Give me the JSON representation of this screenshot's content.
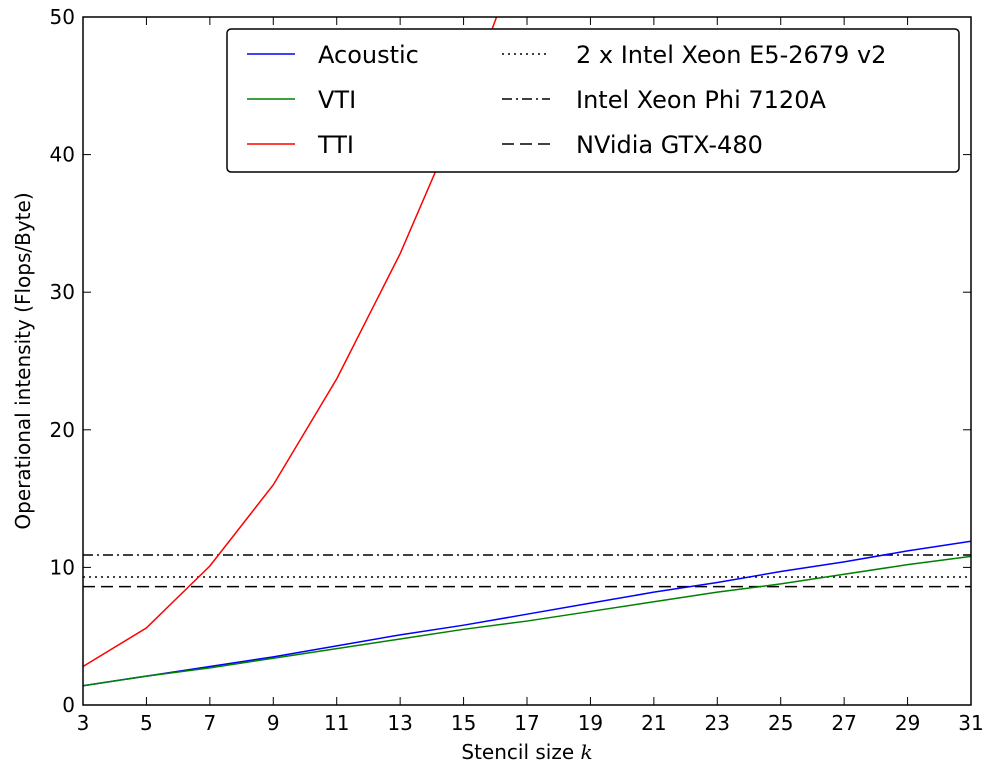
{
  "chart_data": {
    "type": "line",
    "xlabel": "Stencil size",
    "xlabel_var": "k",
    "ylabel": "Operational intensity (Flops/Byte)",
    "x": [
      3,
      5,
      7,
      9,
      11,
      13,
      15,
      17,
      19,
      21,
      23,
      25,
      27,
      29,
      31
    ],
    "series": [
      {
        "name": "Acoustic",
        "color": "#0000ff",
        "values": [
          1.4,
          2.1,
          2.8,
          3.5,
          4.3,
          5.1,
          5.8,
          6.6,
          7.4,
          8.2,
          8.9,
          9.7,
          10.4,
          11.2,
          11.9
        ]
      },
      {
        "name": "VTI",
        "color": "#008000",
        "values": [
          1.4,
          2.1,
          2.7,
          3.4,
          4.1,
          4.8,
          5.5,
          6.1,
          6.8,
          7.5,
          8.2,
          8.8,
          9.5,
          10.2,
          10.8
        ]
      },
      {
        "name": "TTI",
        "color": "#ff0000",
        "values": [
          2.8,
          5.6,
          10.1,
          16.0,
          23.7,
          32.8,
          43.5,
          56,
          null,
          null,
          null,
          null,
          null,
          null,
          null
        ]
      }
    ],
    "hlines": [
      {
        "name": "2 x Intel Xeon E5-2679 v2",
        "value": 9.3,
        "dash": "dotted",
        "color": "#000000"
      },
      {
        "name": "Intel Xeon Phi 7120A",
        "value": 10.9,
        "dash": "dashdot",
        "color": "#000000"
      },
      {
        "name": "NVidia GTX-480",
        "value": 8.6,
        "dash": "dashed",
        "color": "#000000"
      }
    ],
    "xlim": [
      3,
      31
    ],
    "xticks": [
      3,
      5,
      7,
      9,
      11,
      13,
      15,
      17,
      19,
      21,
      23,
      25,
      27,
      29,
      31
    ],
    "ylim": [
      0,
      50
    ],
    "yticks": [
      0,
      10,
      20,
      30,
      40,
      50
    ],
    "grid": false,
    "legend": "upper right"
  }
}
